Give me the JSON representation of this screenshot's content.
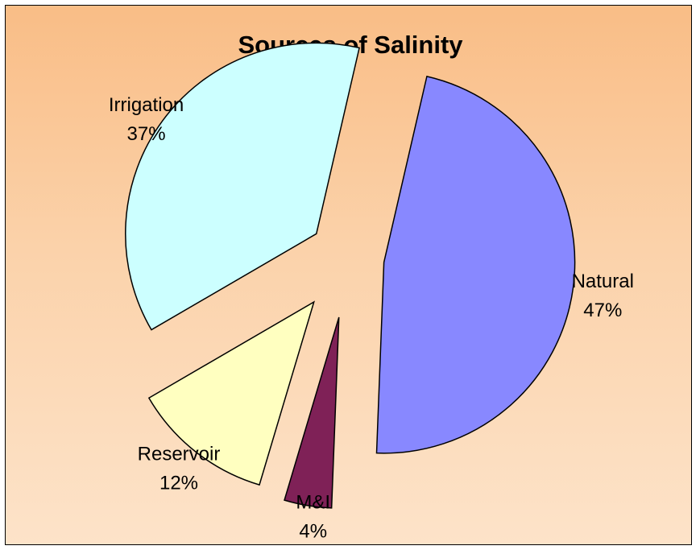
{
  "chart_data": {
    "type": "pie",
    "title": "Sources of Salinity",
    "slices": [
      {
        "name": "Natural",
        "value": 47,
        "pct_label": "47%",
        "color": "#8888ff"
      },
      {
        "name": "M&I",
        "value": 4,
        "pct_label": "4%",
        "color": "#7f2157"
      },
      {
        "name": "Reservoir",
        "value": 12,
        "pct_label": "12%",
        "color": "#ffffc0"
      },
      {
        "name": "Irrigation",
        "value": 37,
        "pct_label": "37%",
        "color": "#ccffff"
      }
    ],
    "exploded": true,
    "legend": "none"
  }
}
